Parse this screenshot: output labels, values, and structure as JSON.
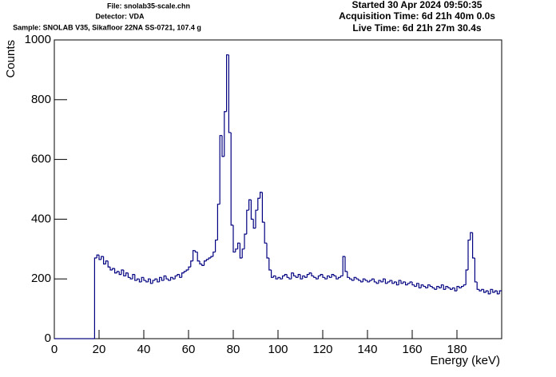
{
  "chart_data": {
    "type": "histogram",
    "header_left": [
      "File: snolab35-scale.chn",
      "Detector: VDA",
      "Sample: SNOLAB V35, Sikafloor 22NA SS-0721, 107.4 g"
    ],
    "header_right": [
      "Started 30 Apr 2024 09:50:35",
      "Acquisition Time: 6d 21h 40m 0.0s",
      "Live Time: 6d 21h 27m 30.4s"
    ],
    "x_label": "Energy (keV)",
    "y_label": "Counts",
    "color": "#000080",
    "xlim": [
      0,
      200
    ],
    "ylim": [
      0,
      1000
    ],
    "xticks": [
      0,
      20,
      40,
      60,
      80,
      100,
      120,
      140,
      160,
      180
    ],
    "yticks": [
      0,
      200,
      400,
      600,
      800,
      1000
    ],
    "bins": [
      0,
      1,
      2,
      3,
      4,
      5,
      6,
      7,
      8,
      9,
      10,
      11,
      12,
      13,
      14,
      15,
      16,
      17,
      18,
      19,
      20,
      21,
      22,
      23,
      24,
      25,
      26,
      27,
      28,
      29,
      30,
      31,
      32,
      33,
      34,
      35,
      36,
      37,
      38,
      39,
      40,
      41,
      42,
      43,
      44,
      45,
      46,
      47,
      48,
      49,
      50,
      51,
      52,
      53,
      54,
      55,
      56,
      57,
      58,
      59,
      60,
      61,
      62,
      63,
      64,
      65,
      66,
      67,
      68,
      69,
      70,
      71,
      72,
      73,
      74,
      75,
      76,
      77,
      78,
      79,
      80,
      81,
      82,
      83,
      84,
      85,
      86,
      87,
      88,
      89,
      90,
      91,
      92,
      93,
      94,
      95,
      96,
      97,
      98,
      99,
      100,
      101,
      102,
      103,
      104,
      105,
      106,
      107,
      108,
      109,
      110,
      111,
      112,
      113,
      114,
      115,
      116,
      117,
      118,
      119,
      120,
      121,
      122,
      123,
      124,
      125,
      126,
      127,
      128,
      129,
      130,
      131,
      132,
      133,
      134,
      135,
      136,
      137,
      138,
      139,
      140,
      141,
      142,
      143,
      144,
      145,
      146,
      147,
      148,
      149,
      150,
      151,
      152,
      153,
      154,
      155,
      156,
      157,
      158,
      159,
      160,
      161,
      162,
      163,
      164,
      165,
      166,
      167,
      168,
      169,
      170,
      171,
      172,
      173,
      174,
      175,
      176,
      177,
      178,
      179,
      180,
      181,
      182,
      183,
      184,
      185,
      186,
      187,
      188,
      189,
      190,
      191,
      192,
      193,
      194,
      195,
      196,
      197,
      198,
      199,
      200
    ],
    "values": [
      0,
      0,
      0,
      0,
      0,
      0,
      0,
      0,
      0,
      0,
      0,
      0,
      0,
      0,
      0,
      0,
      0,
      0,
      270,
      280,
      265,
      275,
      250,
      260,
      240,
      230,
      235,
      220,
      225,
      215,
      230,
      210,
      220,
      205,
      200,
      215,
      195,
      200,
      190,
      205,
      195,
      190,
      200,
      185,
      195,
      200,
      190,
      205,
      195,
      210,
      200,
      195,
      205,
      200,
      210,
      215,
      205,
      220,
      225,
      230,
      240,
      260,
      295,
      290,
      260,
      250,
      245,
      260,
      265,
      270,
      275,
      290,
      330,
      450,
      680,
      610,
      760,
      950,
      690,
      380,
      290,
      300,
      320,
      270,
      300,
      350,
      430,
      465,
      400,
      370,
      430,
      470,
      490,
      390,
      320,
      270,
      230,
      205,
      210,
      200,
      205,
      200,
      210,
      215,
      205,
      200,
      220,
      210,
      205,
      215,
      200,
      210,
      205,
      215,
      220,
      210,
      205,
      200,
      210,
      215,
      205,
      200,
      210,
      205,
      215,
      210,
      200,
      205,
      210,
      275,
      225,
      205,
      200,
      195,
      205,
      200,
      195,
      190,
      200,
      195,
      190,
      195,
      200,
      190,
      185,
      195,
      190,
      200,
      185,
      190,
      195,
      185,
      190,
      180,
      195,
      185,
      190,
      180,
      185,
      190,
      180,
      175,
      185,
      170,
      180,
      175,
      170,
      180,
      175,
      170,
      165,
      175,
      170,
      180,
      165,
      175,
      170,
      165,
      170,
      160,
      175,
      170,
      175,
      180,
      230,
      330,
      355,
      270,
      190,
      165,
      160,
      165,
      155,
      160,
      150,
      165,
      155,
      160,
      150,
      160
    ]
  }
}
